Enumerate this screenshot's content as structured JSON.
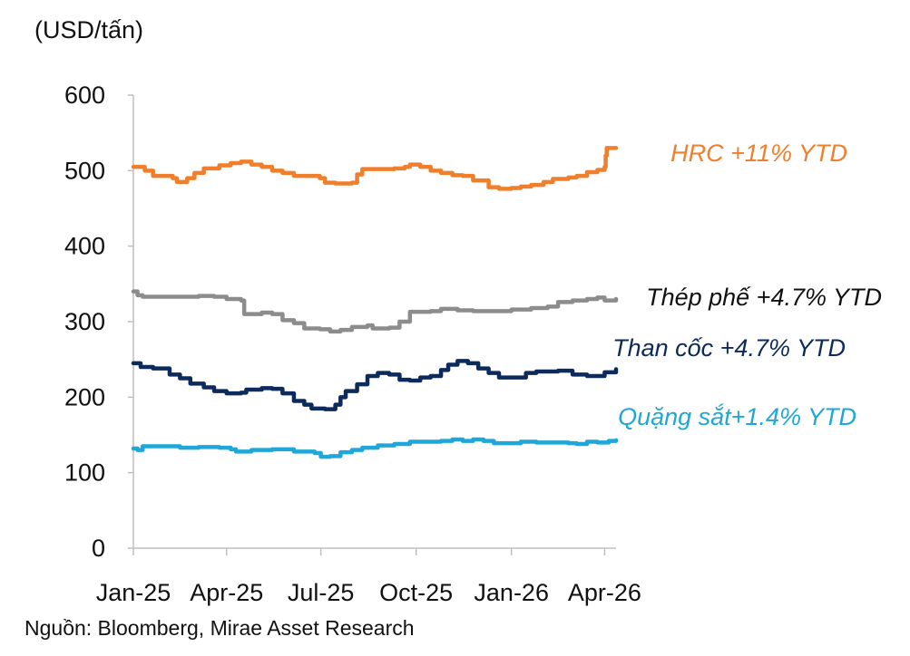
{
  "chart_data": {
    "type": "line",
    "unit_label": "(USD/tấn)",
    "ylim": [
      0,
      600
    ],
    "yticks": [
      0,
      100,
      200,
      300,
      400,
      500,
      600
    ],
    "xlim": [
      "2025-01-01",
      "2026-04-12"
    ],
    "xtick_labels": [
      "Jan-25",
      "Apr-25",
      "Jul-25",
      "Oct-25",
      "Jan-26",
      "Apr-26"
    ],
    "xtick_dates": [
      "2025-01-01",
      "2025-04-01",
      "2025-07-01",
      "2025-10-01",
      "2026-01-01",
      "2026-04-01"
    ],
    "grid": false,
    "source": "Nguồn: Bloomberg, Mirae Asset Research",
    "series": [
      {
        "name": "HRC +11% YTD",
        "color": "#f07f2c",
        "points": [
          [
            "2025-01-01",
            505
          ],
          [
            "2025-01-12",
            500
          ],
          [
            "2025-01-20",
            493
          ],
          [
            "2025-02-08",
            490
          ],
          [
            "2025-02-12",
            485
          ],
          [
            "2025-02-22",
            490
          ],
          [
            "2025-03-01",
            497
          ],
          [
            "2025-03-10",
            503
          ],
          [
            "2025-03-25",
            507
          ],
          [
            "2025-04-05",
            510
          ],
          [
            "2025-04-15",
            512
          ],
          [
            "2025-04-25",
            508
          ],
          [
            "2025-05-05",
            505
          ],
          [
            "2025-05-15",
            500
          ],
          [
            "2025-05-25",
            497
          ],
          [
            "2025-06-05",
            493
          ],
          [
            "2025-06-20",
            493
          ],
          [
            "2025-06-30",
            490
          ],
          [
            "2025-07-05",
            484
          ],
          [
            "2025-07-15",
            483
          ],
          [
            "2025-07-31",
            484
          ],
          [
            "2025-08-05",
            495
          ],
          [
            "2025-08-10",
            502
          ],
          [
            "2025-08-25",
            502
          ],
          [
            "2025-09-10",
            503
          ],
          [
            "2025-09-20",
            505
          ],
          [
            "2025-09-25",
            508
          ],
          [
            "2025-10-05",
            505
          ],
          [
            "2025-10-15",
            500
          ],
          [
            "2025-10-25",
            497
          ],
          [
            "2025-11-05",
            494
          ],
          [
            "2025-11-15",
            493
          ],
          [
            "2025-11-25",
            487
          ],
          [
            "2025-12-05",
            487
          ],
          [
            "2025-12-10",
            478
          ],
          [
            "2025-12-20",
            476
          ],
          [
            "2026-01-01",
            477
          ],
          [
            "2026-01-10",
            479
          ],
          [
            "2026-01-20",
            481
          ],
          [
            "2026-02-01",
            485
          ],
          [
            "2026-02-10",
            489
          ],
          [
            "2026-02-25",
            491
          ],
          [
            "2026-03-05",
            493
          ],
          [
            "2026-03-15",
            498
          ],
          [
            "2026-03-25",
            501
          ],
          [
            "2026-04-01",
            505
          ],
          [
            "2026-04-02",
            520
          ],
          [
            "2026-04-03",
            530
          ],
          [
            "2026-04-12",
            530
          ]
        ]
      },
      {
        "name": "Thép phế +4.7% YTD",
        "color": "#8c8c8c",
        "points": [
          [
            "2025-01-01",
            340
          ],
          [
            "2025-01-05",
            335
          ],
          [
            "2025-01-10",
            333
          ],
          [
            "2025-02-10",
            333
          ],
          [
            "2025-03-05",
            334
          ],
          [
            "2025-03-20",
            333
          ],
          [
            "2025-04-01",
            330
          ],
          [
            "2025-04-15",
            328
          ],
          [
            "2025-04-18",
            310
          ],
          [
            "2025-05-05",
            312
          ],
          [
            "2025-05-15",
            310
          ],
          [
            "2025-05-25",
            302
          ],
          [
            "2025-06-05",
            298
          ],
          [
            "2025-06-15",
            291
          ],
          [
            "2025-06-30",
            290
          ],
          [
            "2025-07-10",
            287
          ],
          [
            "2025-07-20",
            289
          ],
          [
            "2025-07-31",
            293
          ],
          [
            "2025-08-15",
            295
          ],
          [
            "2025-08-20",
            291
          ],
          [
            "2025-09-05",
            292
          ],
          [
            "2025-09-15",
            300
          ],
          [
            "2025-09-25",
            313
          ],
          [
            "2025-10-15",
            314
          ],
          [
            "2025-10-25",
            317
          ],
          [
            "2025-11-10",
            315
          ],
          [
            "2025-11-25",
            314
          ],
          [
            "2025-12-15",
            314
          ],
          [
            "2026-01-01",
            316
          ],
          [
            "2026-01-20",
            318
          ],
          [
            "2026-02-05",
            320
          ],
          [
            "2026-02-15",
            326
          ],
          [
            "2026-03-01",
            328
          ],
          [
            "2026-03-15",
            330
          ],
          [
            "2026-03-25",
            332
          ],
          [
            "2026-04-01",
            328
          ],
          [
            "2026-04-12",
            330
          ]
        ]
      },
      {
        "name": "Than cốc +4.7% YTD",
        "color": "#0d2a5c",
        "points": [
          [
            "2025-01-01",
            245
          ],
          [
            "2025-01-08",
            240
          ],
          [
            "2025-01-20",
            238
          ],
          [
            "2025-02-05",
            230
          ],
          [
            "2025-02-15",
            225
          ],
          [
            "2025-02-25",
            218
          ],
          [
            "2025-03-10",
            213
          ],
          [
            "2025-03-20",
            208
          ],
          [
            "2025-04-01",
            205
          ],
          [
            "2025-04-15",
            206
          ],
          [
            "2025-04-20",
            210
          ],
          [
            "2025-05-05",
            212
          ],
          [
            "2025-05-15",
            211
          ],
          [
            "2025-05-25",
            205
          ],
          [
            "2025-06-05",
            195
          ],
          [
            "2025-06-15",
            190
          ],
          [
            "2025-06-22",
            185
          ],
          [
            "2025-07-05",
            184
          ],
          [
            "2025-07-15",
            190
          ],
          [
            "2025-07-20",
            200
          ],
          [
            "2025-07-25",
            208
          ],
          [
            "2025-08-05",
            217
          ],
          [
            "2025-08-15",
            228
          ],
          [
            "2025-08-25",
            232
          ],
          [
            "2025-09-05",
            230
          ],
          [
            "2025-09-15",
            223
          ],
          [
            "2025-09-25",
            222
          ],
          [
            "2025-10-05",
            226
          ],
          [
            "2025-10-15",
            228
          ],
          [
            "2025-10-25",
            236
          ],
          [
            "2025-11-01",
            243
          ],
          [
            "2025-11-10",
            248
          ],
          [
            "2025-11-20",
            245
          ],
          [
            "2025-11-30",
            238
          ],
          [
            "2025-12-10",
            232
          ],
          [
            "2025-12-20",
            226
          ],
          [
            "2026-01-05",
            226
          ],
          [
            "2026-01-15",
            232
          ],
          [
            "2026-01-25",
            234
          ],
          [
            "2026-02-15",
            235
          ],
          [
            "2026-03-01",
            230
          ],
          [
            "2026-03-15",
            228
          ],
          [
            "2026-03-25",
            228
          ],
          [
            "2026-04-01",
            233
          ],
          [
            "2026-04-12",
            237
          ]
        ]
      },
      {
        "name": "Quặng sắt+1.4% YTD",
        "color": "#1ea7d8",
        "points": [
          [
            "2025-01-01",
            132
          ],
          [
            "2025-01-05",
            130
          ],
          [
            "2025-01-10",
            135
          ],
          [
            "2025-02-15",
            133
          ],
          [
            "2025-03-05",
            134
          ],
          [
            "2025-03-25",
            133
          ],
          [
            "2025-04-05",
            131
          ],
          [
            "2025-04-10",
            128
          ],
          [
            "2025-04-25",
            130
          ],
          [
            "2025-05-15",
            131
          ],
          [
            "2025-06-05",
            128
          ],
          [
            "2025-06-25",
            126
          ],
          [
            "2025-07-01",
            121
          ],
          [
            "2025-07-10",
            122
          ],
          [
            "2025-07-20",
            127
          ],
          [
            "2025-07-31",
            130
          ],
          [
            "2025-08-10",
            133
          ],
          [
            "2025-08-25",
            136
          ],
          [
            "2025-09-10",
            138
          ],
          [
            "2025-09-25",
            141
          ],
          [
            "2025-10-10",
            141
          ],
          [
            "2025-10-25",
            142
          ],
          [
            "2025-11-05",
            144
          ],
          [
            "2025-11-15",
            142
          ],
          [
            "2025-11-25",
            144
          ],
          [
            "2025-12-05",
            142
          ],
          [
            "2025-12-15",
            139
          ],
          [
            "2026-01-10",
            141
          ],
          [
            "2026-01-25",
            140
          ],
          [
            "2026-02-10",
            140
          ],
          [
            "2026-02-25",
            139
          ],
          [
            "2026-03-05",
            138
          ],
          [
            "2026-03-15",
            141
          ],
          [
            "2026-03-25",
            140
          ],
          [
            "2026-04-05",
            142
          ],
          [
            "2026-04-12",
            143
          ]
        ]
      }
    ]
  }
}
